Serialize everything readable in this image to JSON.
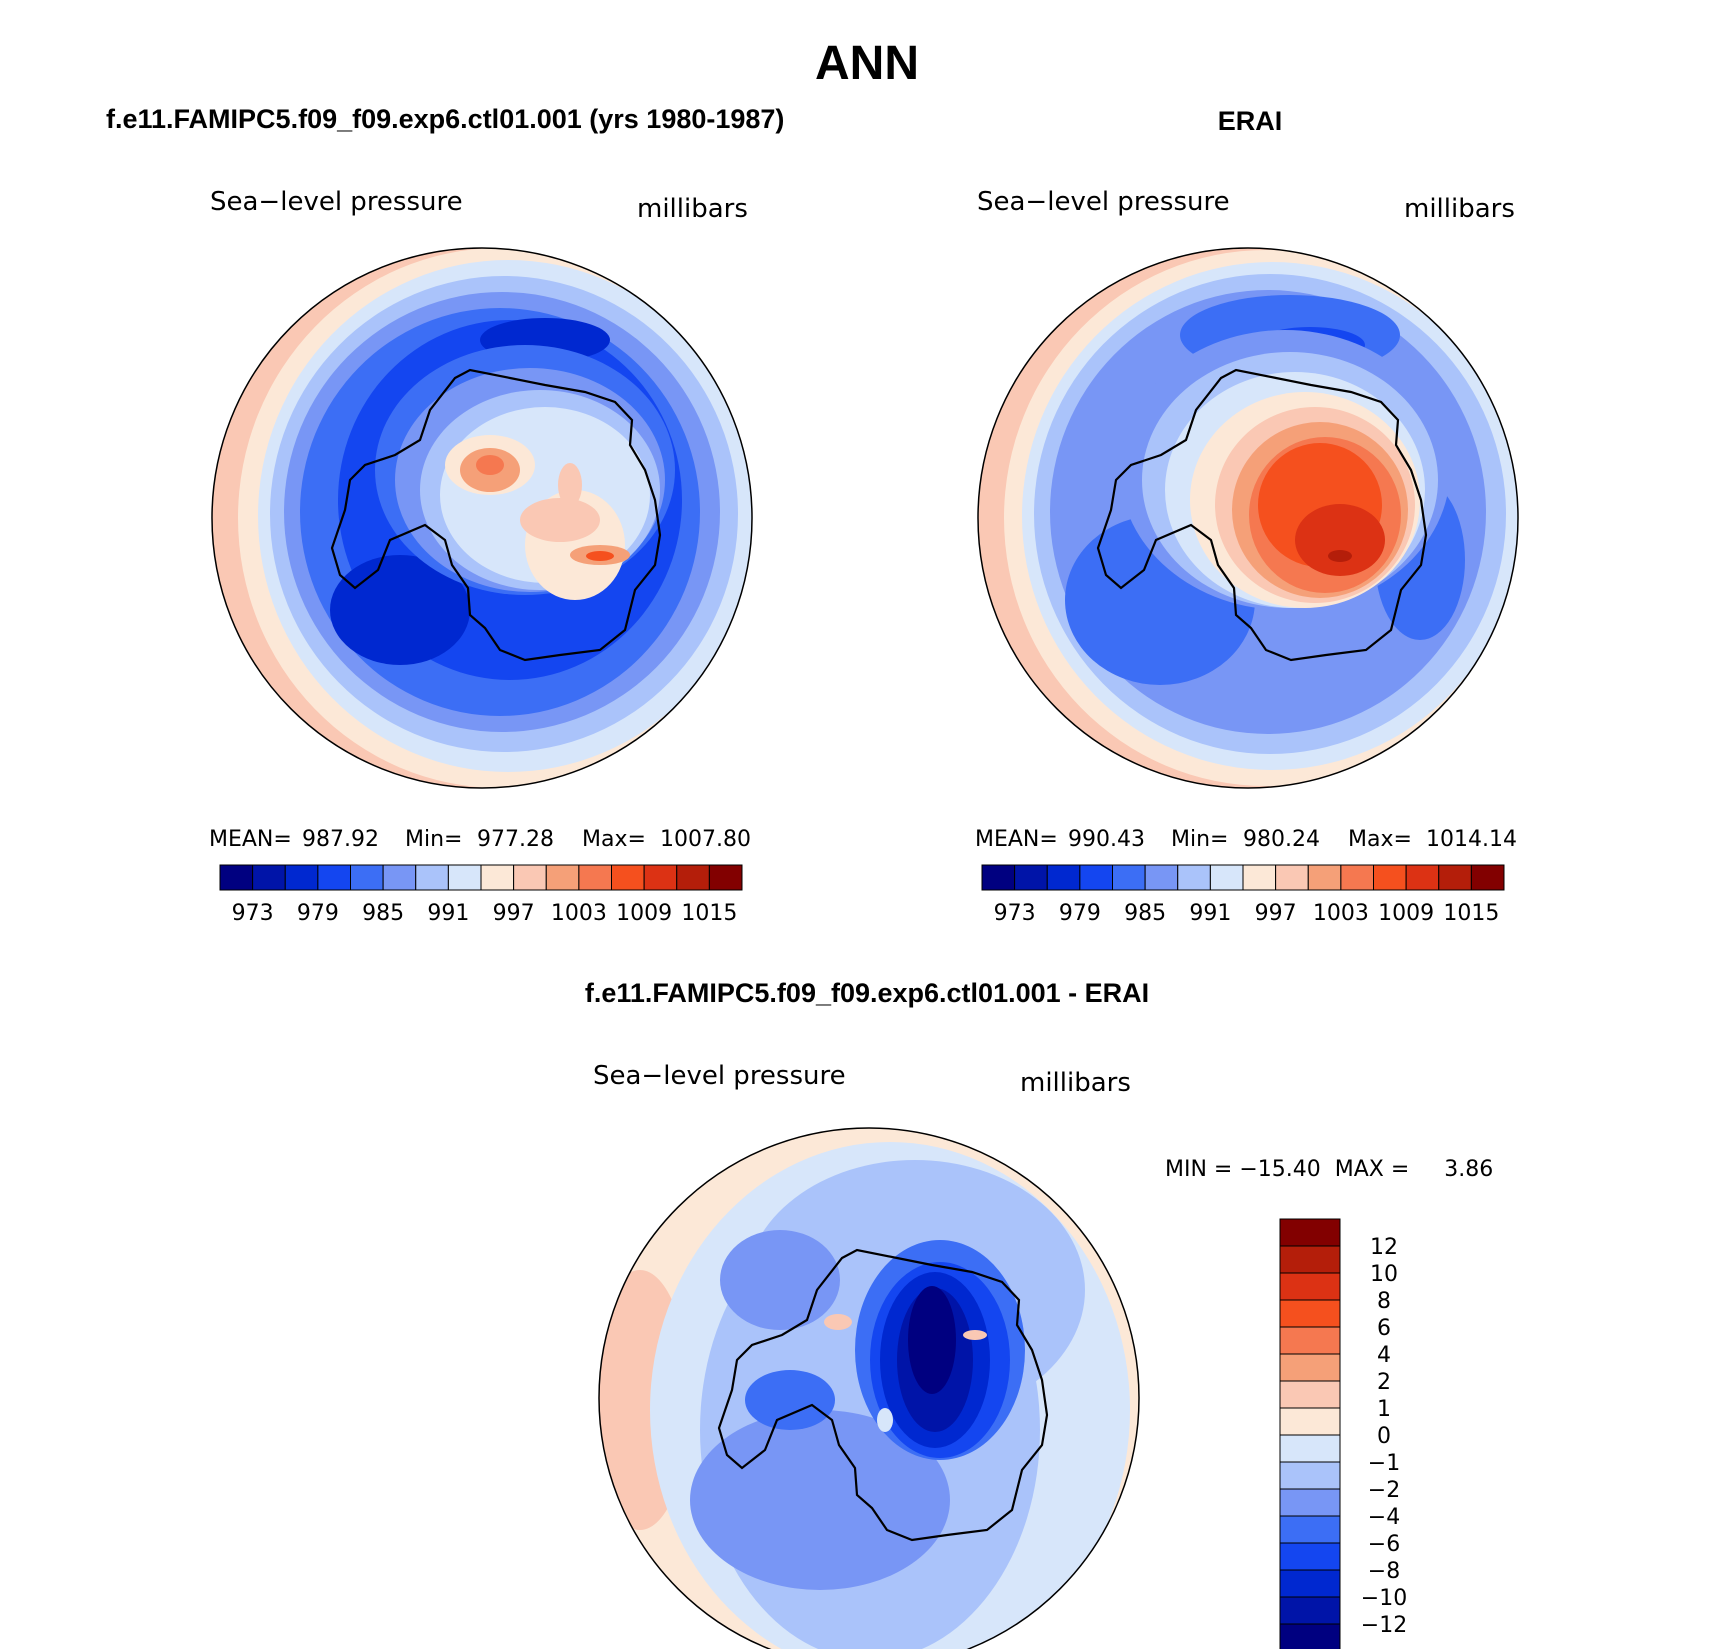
{
  "page": {
    "title": "ANN",
    "bottom_title": "f.e11.FAMIPC5.f09_f09.exp6.ctl01.001 - ERAI"
  },
  "panels": [
    {
      "heading": "f.e11.FAMIPC5.f09_f09.exp6.ctl01.001 (yrs 1980-1987)",
      "variable": "Sea−level pressure",
      "units": "millibars",
      "stats": {
        "mean_label": "MEAN=",
        "mean": "987.92",
        "min_label": "Min=",
        "min": "977.28",
        "max_label": "Max=",
        "max": "1007.80"
      },
      "colorbar_ticks": [
        "973",
        "979",
        "985",
        "991",
        "997",
        "1003",
        "1009",
        "1015"
      ],
      "field": "model"
    },
    {
      "heading": "ERAI",
      "variable": "Sea−level pressure",
      "units": "millibars",
      "stats": {
        "mean_label": "MEAN=",
        "mean": "990.43",
        "min_label": "Min=",
        "min": "980.24",
        "max_label": "Max=",
        "max": "1014.14"
      },
      "colorbar_ticks": [
        "973",
        "979",
        "985",
        "991",
        "997",
        "1003",
        "1009",
        "1015"
      ],
      "field": "obs"
    }
  ],
  "diff_panel": {
    "variable": "Sea−level pressure",
    "units": "millibars",
    "minmax_text": "MIN = −15.40  MAX =     3.86",
    "colorbar_labels": [
      "12",
      "10",
      "8",
      "6",
      "4",
      "2",
      "1",
      "0",
      "−1",
      "−2",
      "−4",
      "−6",
      "−8",
      "−10",
      "−12"
    ]
  },
  "colors": {
    "abs_scale": [
      "#000080",
      "#0014a8",
      "#0028d0",
      "#1446f0",
      "#3c6ef5",
      "#7896f5",
      "#aac3fa",
      "#d7e6fa",
      "#fce8d7",
      "#fac8b4",
      "#f5a078",
      "#f57850",
      "#f5501e",
      "#dc3214",
      "#b41e0a",
      "#820000"
    ],
    "diff_scale_top_to_bottom": [
      "#820000",
      "#b41e0a",
      "#dc3214",
      "#f5501e",
      "#f57850",
      "#f5a078",
      "#fac8b4",
      "#fce8d7",
      "#d7e6fa",
      "#aac3fa",
      "#7896f5",
      "#3c6ef5",
      "#1446f0",
      "#0028d0",
      "#0014a8",
      "#000080"
    ]
  }
}
